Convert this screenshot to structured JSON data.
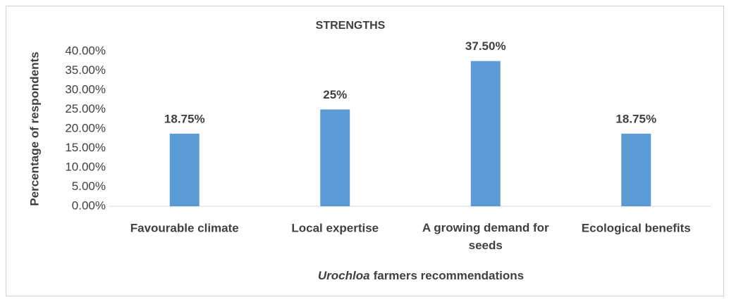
{
  "chart_data": {
    "type": "bar",
    "title": "STRENGTHS",
    "categories": [
      "Favourable climate",
      "Local expertise",
      "A growing demand for seeds",
      "Ecological benefits"
    ],
    "values": [
      18.75,
      25,
      37.5,
      18.75
    ],
    "value_labels": [
      "18.75%",
      "25%",
      "37.50%",
      "18.75%"
    ],
    "color": "#5b9bd5",
    "ylabel": "Percentage of respondents",
    "xlabel_parts": [
      "Urochloa",
      "farmers recommendations"
    ],
    "ylim": [
      0,
      40
    ],
    "yticks": [
      {
        "value": 0,
        "label": "0.00%"
      },
      {
        "value": 5,
        "label": "5.00%"
      },
      {
        "value": 10,
        "label": "10.00%"
      },
      {
        "value": 15,
        "label": "15.00%"
      },
      {
        "value": 20,
        "label": "20.00%"
      },
      {
        "value": 25,
        "label": "25.00%"
      },
      {
        "value": 30,
        "label": "30.00%"
      },
      {
        "value": 35,
        "label": "35.00%"
      },
      {
        "value": 40,
        "label": "40.00%"
      }
    ],
    "grid": false
  }
}
